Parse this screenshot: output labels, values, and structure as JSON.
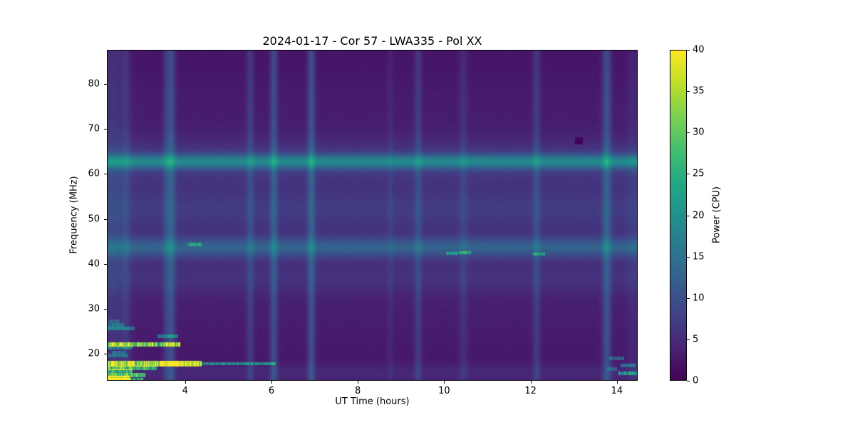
{
  "chart_data": {
    "type": "heatmap",
    "title": "2024-01-17 - Cor 57 - LWA335 - Pol XX",
    "xlabel": "UT Time (hours)",
    "ylabel": "Frequency (MHz)",
    "colorbar_label": "Power (CPU)",
    "xlim": [
      2.19,
      14.48
    ],
    "ylim": [
      14.0,
      87.6
    ],
    "clim": [
      0,
      40
    ],
    "xticks": [
      4,
      6,
      8,
      10,
      12,
      14
    ],
    "yticks": [
      20,
      30,
      40,
      50,
      60,
      70,
      80
    ],
    "colorbar_ticks": [
      0,
      5,
      10,
      15,
      20,
      25,
      30,
      35,
      40
    ],
    "colormap": "viridis",
    "colormap_stops": [
      "#440154",
      "#482475",
      "#414487",
      "#355f8d",
      "#2a788e",
      "#21918c",
      "#22a884",
      "#44bf70",
      "#7ad151",
      "#bddf26",
      "#fde725"
    ],
    "background": "#ffffff",
    "frame_color": "#000000",
    "text_color": "#000000",
    "base_power": 2.3,
    "noise_amp": 1.0,
    "frequency_bands": [
      {
        "center_mhz": 62.8,
        "sigma_mhz": 1.1,
        "power": 12.0
      },
      {
        "center_mhz": 62.5,
        "sigma_mhz": 4.0,
        "power": 4.5
      },
      {
        "center_mhz": 52.5,
        "sigma_mhz": 3.5,
        "power": 4.0
      },
      {
        "center_mhz": 43.6,
        "sigma_mhz": 1.5,
        "power": 7.5
      },
      {
        "center_mhz": 44.0,
        "sigma_mhz": 4.5,
        "power": 2.5
      },
      {
        "center_mhz": 36.5,
        "sigma_mhz": 2.5,
        "power": 2.0
      },
      {
        "center_mhz": 30.0,
        "sigma_mhz": 8.0,
        "power": 1.0
      },
      {
        "center_mhz": 15.5,
        "sigma_mhz": 1.5,
        "power": 2.0
      },
      {
        "center_mhz": 75.0,
        "sigma_mhz": 5.0,
        "power": 0.8
      }
    ],
    "time_stripes": [
      {
        "time_h": 2.32,
        "halfwidth_h": 0.22,
        "power": 3.0
      },
      {
        "time_h": 2.62,
        "halfwidth_h": 0.07,
        "power": 2.5
      },
      {
        "time_h": 3.54,
        "halfwidth_h": 0.05,
        "power": 2.5
      },
      {
        "time_h": 3.66,
        "halfwidth_h": 0.07,
        "power": 7.0
      },
      {
        "time_h": 5.5,
        "halfwidth_h": 0.06,
        "power": 4.0
      },
      {
        "time_h": 6.05,
        "halfwidth_h": 0.06,
        "power": 6.5
      },
      {
        "time_h": 6.92,
        "halfwidth_h": 0.06,
        "power": 7.0
      },
      {
        "time_h": 8.75,
        "halfwidth_h": 0.05,
        "power": 1.5
      },
      {
        "time_h": 9.4,
        "halfwidth_h": 0.06,
        "power": 4.0
      },
      {
        "time_h": 10.45,
        "halfwidth_h": 0.07,
        "power": 2.5
      },
      {
        "time_h": 12.15,
        "halfwidth_h": 0.06,
        "power": 4.0
      },
      {
        "time_h": 13.78,
        "halfwidth_h": 0.07,
        "power": 7.0
      },
      {
        "time_h": 14.38,
        "halfwidth_h": 0.1,
        "power": 1.5
      }
    ],
    "rfi_segments": [
      {
        "freq_mhz": 17.7,
        "halfheight_mhz": 0.45,
        "t0_h": 2.19,
        "t1_h": 4.35,
        "power": 36
      },
      {
        "freq_mhz": 17.75,
        "halfheight_mhz": 0.22,
        "t0_h": 4.35,
        "t1_h": 6.07,
        "power": 15
      },
      {
        "freq_mhz": 16.8,
        "halfheight_mhz": 0.3,
        "t0_h": 2.19,
        "t1_h": 3.3,
        "power": 22
      },
      {
        "freq_mhz": 16.1,
        "halfheight_mhz": 0.28,
        "t0_h": 2.19,
        "t1_h": 2.75,
        "power": 17
      },
      {
        "freq_mhz": 15.2,
        "halfheight_mhz": 0.3,
        "t0_h": 2.19,
        "t1_h": 3.05,
        "power": 24
      },
      {
        "freq_mhz": 14.6,
        "halfheight_mhz": 0.3,
        "t0_h": 2.19,
        "t1_h": 2.7,
        "power": 28
      },
      {
        "freq_mhz": 14.2,
        "halfheight_mhz": 0.25,
        "t0_h": 2.19,
        "t1_h": 3.0,
        "power": 20
      },
      {
        "freq_mhz": 22.0,
        "halfheight_mhz": 0.3,
        "t0_h": 2.19,
        "t1_h": 3.85,
        "power": 30
      },
      {
        "freq_mhz": 21.3,
        "halfheight_mhz": 0.25,
        "t0_h": 2.19,
        "t1_h": 2.75,
        "power": 13
      },
      {
        "freq_mhz": 23.9,
        "halfheight_mhz": 0.25,
        "t0_h": 3.35,
        "t1_h": 3.8,
        "power": 12
      },
      {
        "freq_mhz": 25.6,
        "halfheight_mhz": 0.28,
        "t0_h": 2.19,
        "t1_h": 2.8,
        "power": 12
      },
      {
        "freq_mhz": 26.4,
        "halfheight_mhz": 0.22,
        "t0_h": 2.19,
        "t1_h": 2.55,
        "power": 9
      },
      {
        "freq_mhz": 19.6,
        "halfheight_mhz": 0.25,
        "t0_h": 2.19,
        "t1_h": 2.65,
        "power": 11
      },
      {
        "freq_mhz": 20.3,
        "halfheight_mhz": 0.2,
        "t0_h": 2.3,
        "t1_h": 2.6,
        "power": 9
      },
      {
        "freq_mhz": 27.2,
        "halfheight_mhz": 0.2,
        "t0_h": 2.19,
        "t1_h": 2.45,
        "power": 7
      },
      {
        "freq_mhz": 44.3,
        "halfheight_mhz": 0.25,
        "t0_h": 4.05,
        "t1_h": 4.35,
        "power": 11
      },
      {
        "freq_mhz": 42.4,
        "halfheight_mhz": 0.2,
        "t0_h": 10.05,
        "t1_h": 10.3,
        "power": 13
      },
      {
        "freq_mhz": 42.5,
        "halfheight_mhz": 0.2,
        "t0_h": 10.35,
        "t1_h": 10.6,
        "power": 13
      },
      {
        "freq_mhz": 42.2,
        "halfheight_mhz": 0.2,
        "t0_h": 12.08,
        "t1_h": 12.32,
        "power": 12
      },
      {
        "freq_mhz": 15.6,
        "halfheight_mhz": 0.3,
        "t0_h": 14.05,
        "t1_h": 14.46,
        "power": 16
      },
      {
        "freq_mhz": 17.3,
        "halfheight_mhz": 0.25,
        "t0_h": 14.1,
        "t1_h": 14.42,
        "power": 12
      },
      {
        "freq_mhz": 18.9,
        "halfheight_mhz": 0.25,
        "t0_h": 13.85,
        "t1_h": 14.15,
        "power": 9
      },
      {
        "freq_mhz": 16.5,
        "halfheight_mhz": 0.25,
        "t0_h": 13.8,
        "t1_h": 14.0,
        "power": 8
      }
    ],
    "dark_patch": {
      "t0_h": 13.04,
      "t1_h": 13.2,
      "f0_mhz": 66.7,
      "f1_mhz": 68.2,
      "power": 0.5
    }
  }
}
